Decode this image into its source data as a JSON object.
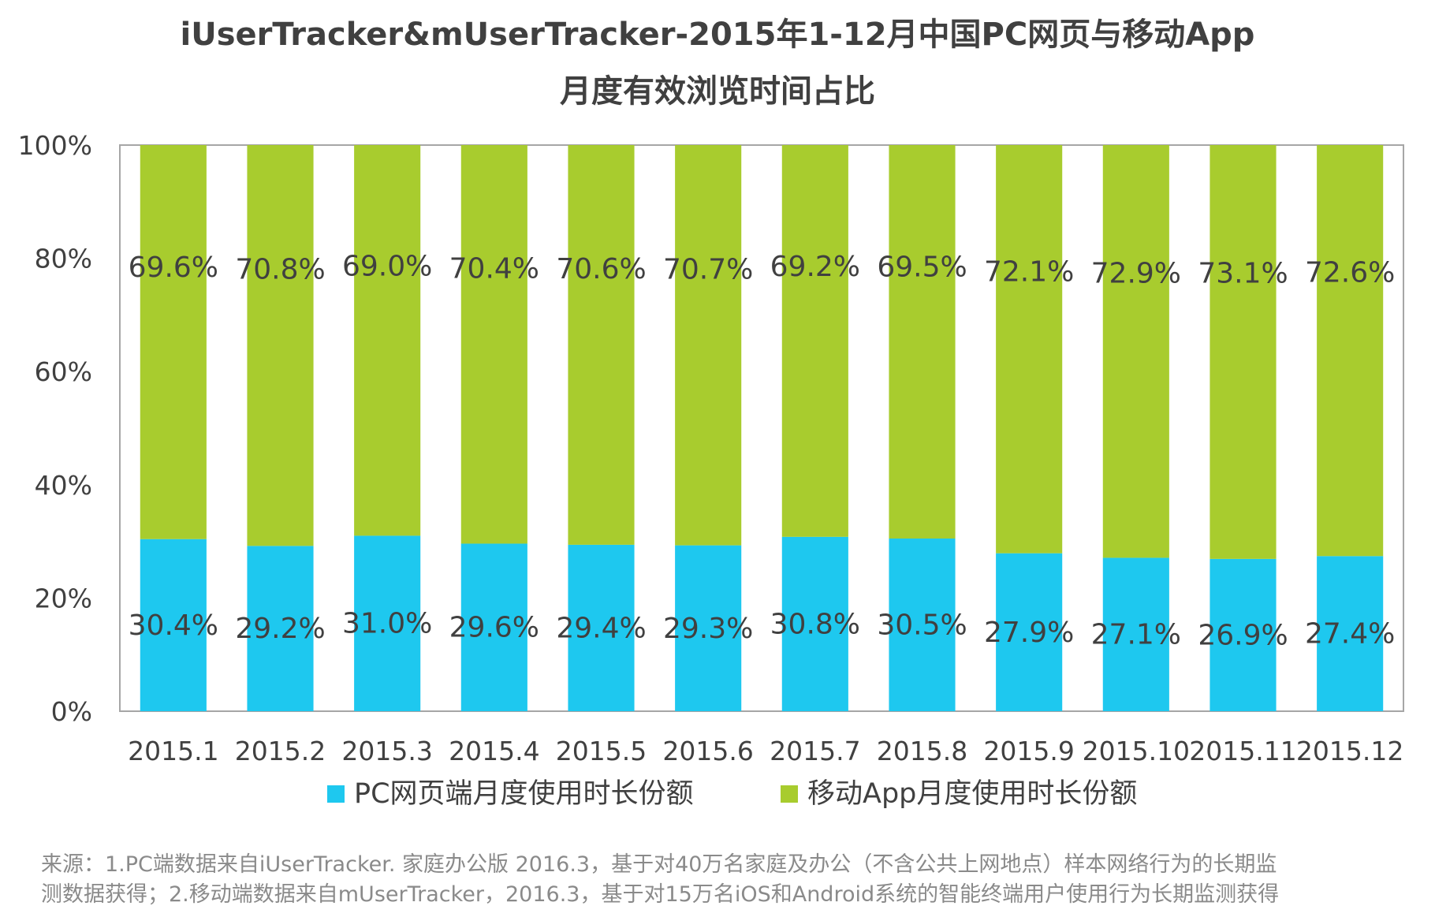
{
  "chart_data": {
    "type": "bar",
    "stacked": true,
    "title": "iUserTracker&mUserTracker-2015年1-12月中国PC网页与移动App",
    "subtitle": "月度有效浏览时间占比",
    "categories": [
      "2015.1",
      "2015.2",
      "2015.3",
      "2015.4",
      "2015.5",
      "2015.6",
      "2015.7",
      "2015.8",
      "2015.9",
      "2015.10",
      "2015.11",
      "2015.12"
    ],
    "series": [
      {
        "name": "PC网页端月度使用时长份额",
        "color": "#1EC8EF",
        "values": [
          30.4,
          29.2,
          31.0,
          29.6,
          29.4,
          29.3,
          30.8,
          30.5,
          27.9,
          27.1,
          26.9,
          27.4
        ],
        "labels": [
          "30.4%",
          "29.2%",
          "31.0%",
          "29.6%",
          "29.4%",
          "29.3%",
          "30.8%",
          "30.5%",
          "27.9%",
          "27.1%",
          "26.9%",
          "27.4%"
        ]
      },
      {
        "name": "移动App月度使用时长份额",
        "color": "#A8CC2E",
        "values": [
          69.6,
          70.8,
          69.0,
          70.4,
          70.6,
          70.7,
          69.2,
          69.5,
          72.1,
          72.9,
          73.1,
          72.6
        ],
        "labels": [
          "69.6%",
          "70.8%",
          "69.0%",
          "70.4%",
          "70.6%",
          "70.7%",
          "69.2%",
          "69.5%",
          "72.1%",
          "72.9%",
          "73.1%",
          "72.6%"
        ]
      }
    ],
    "ylim": [
      0,
      100
    ],
    "yticks": [
      0,
      20,
      40,
      60,
      80,
      100
    ],
    "ytick_labels": [
      "0%",
      "20%",
      "40%",
      "60%",
      "80%",
      "100%"
    ],
    "xlabel": "",
    "ylabel": "",
    "grid": false,
    "legend": "bottom"
  },
  "source": {
    "line1": "来源：1.PC端数据来自iUserTracker. 家庭办公版 2016.3，基于对40万名家庭及办公（不含公共上网地点）样本网络行为的长期监",
    "line2": "测数据获得；2.移动端数据来自mUserTracker，2016.3，基于对15万名iOS和Android系统的智能终端用户使用行为长期监测获得"
  }
}
